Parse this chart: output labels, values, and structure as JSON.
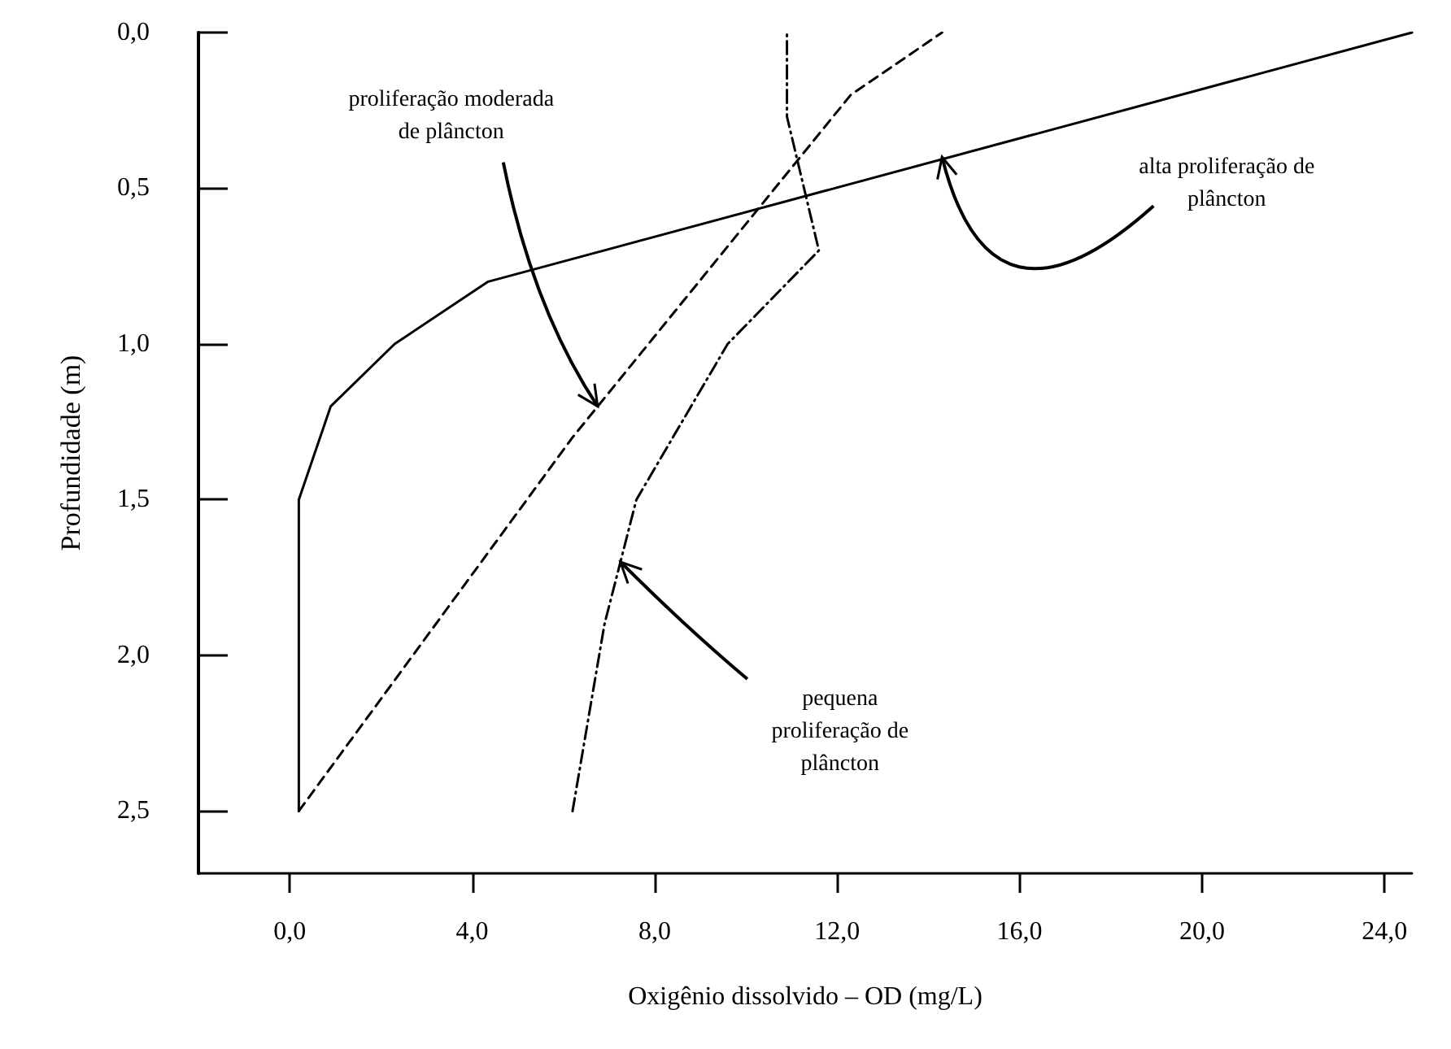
{
  "chart_data": {
    "type": "line",
    "xlabel": "Oxigênio dissolvido – OD (mg/L)",
    "ylabel": "Profundidade (m)",
    "xlim": [
      -2.0,
      24.6
    ],
    "xticks": [
      {
        "value": 0,
        "label": "0,0"
      },
      {
        "value": 4,
        "label": "4,0"
      },
      {
        "value": 8,
        "label": "8,0"
      },
      {
        "value": 12,
        "label": "12,0"
      },
      {
        "value": 16,
        "label": "16,0"
      },
      {
        "value": 20,
        "label": "20,0"
      },
      {
        "value": 24,
        "label": "24,0"
      }
    ],
    "ylim": [
      2.7,
      0
    ],
    "yticks": [
      {
        "value": 0,
        "label": "0,0"
      },
      {
        "value": 0.5,
        "label": "0,5"
      },
      {
        "value": 1,
        "label": "1,0"
      },
      {
        "value": 1.5,
        "label": "1,5"
      },
      {
        "value": 2,
        "label": "2,0"
      },
      {
        "value": 2.5,
        "label": "2,5"
      }
    ],
    "grid": false,
    "marker": "none",
    "series": [
      {
        "color": "#000000",
        "line_style": "solid",
        "x": [
          0.2,
          0.2,
          0.9,
          2.3,
          4.35,
          24.6
        ],
        "values": [
          2.5,
          1.5,
          1.2,
          1.0,
          0.8,
          0.0
        ]
      },
      {
        "color": "#000000",
        "line_style": "dashed",
        "x": [
          0.2,
          6.2,
          12.3,
          14.3
        ],
        "values": [
          2.5,
          1.3,
          0.2,
          0.0
        ]
      },
      {
        "color": "#000000",
        "line_style": "dashdot",
        "x": [
          6.2,
          6.9,
          7.6,
          9.6,
          11.6,
          10.9,
          10.9
        ],
        "values": [
          2.5,
          1.9,
          1.5,
          1.0,
          0.7,
          0.27,
          0.0
        ]
      }
    ],
    "annotations": [
      {
        "text": "proliferação moderada\nde plâncton",
        "x": 6.75,
        "y": 1.2
      },
      {
        "text": "alta proliferação de\nplâncton",
        "x": 14.3,
        "y": 0.4
      },
      {
        "text": "pequena\nproliferação de\nplâncton",
        "x": 7.25,
        "y": 1.7
      }
    ]
  }
}
